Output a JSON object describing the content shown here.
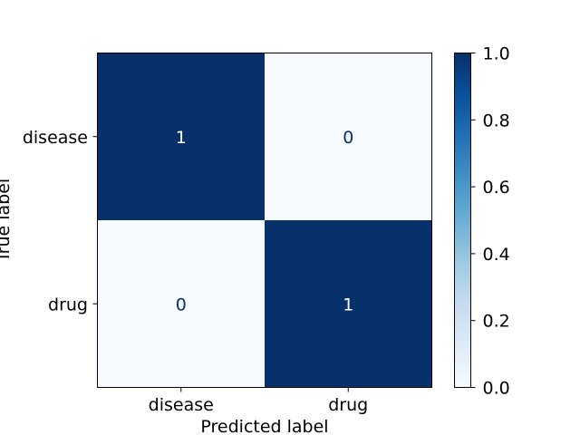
{
  "chart_data": {
    "type": "heatmap",
    "title": "",
    "xlabel": "Predicted label",
    "ylabel": "True label",
    "x_categories": [
      "disease",
      "drug"
    ],
    "y_categories": [
      "disease",
      "drug"
    ],
    "values": [
      [
        1,
        0
      ],
      [
        0,
        1
      ]
    ],
    "value_labels": [
      [
        "1",
        "0"
      ],
      [
        "0",
        "1"
      ]
    ],
    "colormap": "Blues",
    "color_low": "#f7fbff",
    "color_high": "#08306b",
    "colorbar": {
      "range": [
        0.0,
        1.0
      ],
      "ticks": [
        0.0,
        0.2,
        0.4,
        0.6,
        0.8,
        1.0
      ],
      "tick_labels": [
        "0.0",
        "0.2",
        "0.4",
        "0.6",
        "0.8",
        "1.0"
      ]
    },
    "grid": false
  }
}
